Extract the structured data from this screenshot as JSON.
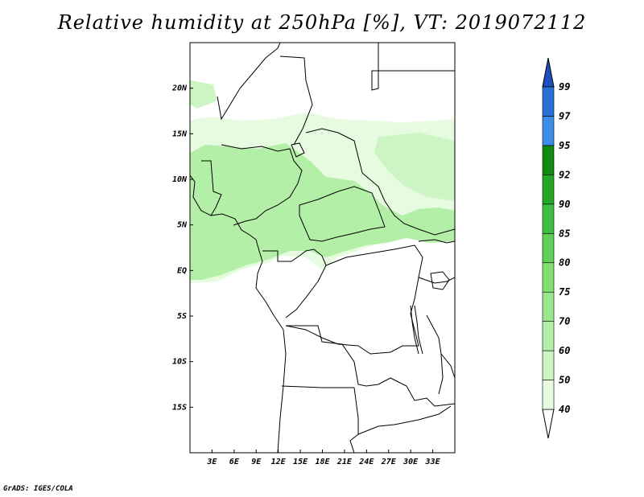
{
  "title": "Relative humidity at 250hPa [%], VT: 2019072112",
  "credit": "GrADS: IGES/COLA",
  "map": {
    "lon_range": [
      0,
      36
    ],
    "lat_range": [
      -20,
      25
    ],
    "lat_ticks": [
      {
        "value": 20,
        "label": "20N"
      },
      {
        "value": 15,
        "label": "15N"
      },
      {
        "value": 10,
        "label": "10N"
      },
      {
        "value": 5,
        "label": "5N"
      },
      {
        "value": 0,
        "label": "EQ"
      },
      {
        "value": -5,
        "label": "5S"
      },
      {
        "value": -10,
        "label": "10S"
      },
      {
        "value": -15,
        "label": "15S"
      }
    ],
    "lon_ticks": [
      {
        "value": 3,
        "label": "3E"
      },
      {
        "value": 6,
        "label": "6E"
      },
      {
        "value": 9,
        "label": "9E"
      },
      {
        "value": 12,
        "label": "12E"
      },
      {
        "value": 15,
        "label": "15E"
      },
      {
        "value": 18,
        "label": "18E"
      },
      {
        "value": 21,
        "label": "21E"
      },
      {
        "value": 24,
        "label": "24E"
      },
      {
        "value": 27,
        "label": "27E"
      },
      {
        "value": 30,
        "label": "30E"
      },
      {
        "value": 33,
        "label": "33E"
      }
    ]
  },
  "colorbar": {
    "levels": [
      "40",
      "50",
      "60",
      "70",
      "75",
      "80",
      "85",
      "90",
      "92",
      "95",
      "97",
      "99"
    ],
    "colors": [
      "#e6fbe0",
      "#cdf5c4",
      "#b4efa8",
      "#9be68c",
      "#82e070",
      "#5fd157",
      "#3fbf3f",
      "#25a625",
      "#108a10",
      "#3d8ee8",
      "#2a70d6",
      "#1f55c0"
    ],
    "under_color": "#ffffff",
    "over_color": "#1e4fc0"
  }
}
